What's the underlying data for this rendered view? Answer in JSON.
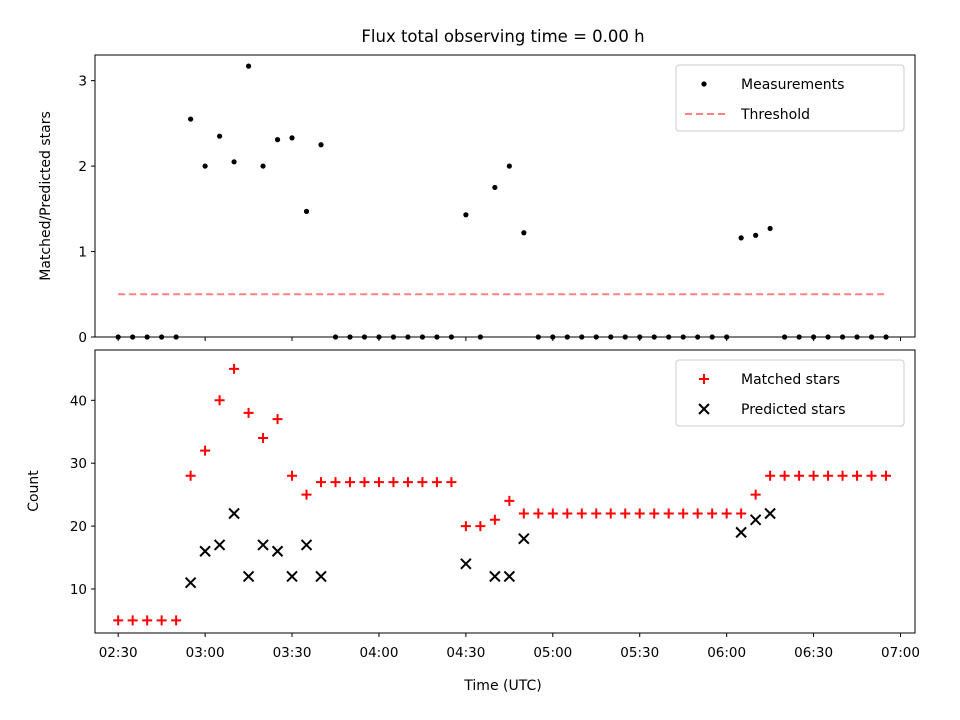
{
  "chart_data": [
    {
      "type": "scatter",
      "title": "Flux total observing time = 0.00 h",
      "xlabel": "",
      "ylabel": "Matched/Predicted stars",
      "xlim": [
        "02:22",
        "07:05"
      ],
      "ylim": [
        0,
        3.3
      ],
      "yticks": [
        0,
        1,
        2,
        3
      ],
      "legend_position": "top-right",
      "series": [
        {
          "name": "Measurements",
          "marker": "dot",
          "color": "#000000",
          "points": [
            [
              "02:30",
              0
            ],
            [
              "02:35",
              0
            ],
            [
              "02:40",
              0
            ],
            [
              "02:45",
              0
            ],
            [
              "02:50",
              0
            ],
            [
              "02:55",
              2.55
            ],
            [
              "03:00",
              2.0
            ],
            [
              "03:05",
              2.35
            ],
            [
              "03:10",
              2.05
            ],
            [
              "03:15",
              3.17
            ],
            [
              "03:20",
              2.0
            ],
            [
              "03:25",
              2.31
            ],
            [
              "03:30",
              2.33
            ],
            [
              "03:35",
              1.47
            ],
            [
              "03:40",
              2.25
            ],
            [
              "03:45",
              0
            ],
            [
              "03:50",
              0
            ],
            [
              "03:55",
              0
            ],
            [
              "04:00",
              0
            ],
            [
              "04:05",
              0
            ],
            [
              "04:10",
              0
            ],
            [
              "04:15",
              0
            ],
            [
              "04:20",
              0
            ],
            [
              "04:25",
              0
            ],
            [
              "04:30",
              1.43
            ],
            [
              "04:35",
              0
            ],
            [
              "04:40",
              1.75
            ],
            [
              "04:45",
              2.0
            ],
            [
              "04:50",
              1.22
            ],
            [
              "04:55",
              0
            ],
            [
              "05:00",
              0
            ],
            [
              "05:05",
              0
            ],
            [
              "05:10",
              0
            ],
            [
              "05:15",
              0
            ],
            [
              "05:20",
              0
            ],
            [
              "05:25",
              0
            ],
            [
              "05:30",
              0
            ],
            [
              "05:35",
              0
            ],
            [
              "05:40",
              0
            ],
            [
              "05:45",
              0
            ],
            [
              "05:50",
              0
            ],
            [
              "05:55",
              0
            ],
            [
              "06:00",
              0
            ],
            [
              "06:05",
              1.16
            ],
            [
              "06:10",
              1.19
            ],
            [
              "06:15",
              1.27
            ],
            [
              "06:20",
              0
            ],
            [
              "06:25",
              0
            ],
            [
              "06:30",
              0
            ],
            [
              "06:35",
              0
            ],
            [
              "06:40",
              0
            ],
            [
              "06:45",
              0
            ],
            [
              "06:50",
              0
            ],
            [
              "06:55",
              0
            ]
          ]
        },
        {
          "name": "Threshold",
          "marker": "dashed-line",
          "color": "#ff8080",
          "points": [
            [
              "02:30",
              0.5
            ],
            [
              "06:55",
              0.5
            ]
          ]
        }
      ]
    },
    {
      "type": "scatter",
      "title": "",
      "xlabel": "Time (UTC)",
      "ylabel": "Count",
      "xlim": [
        "02:22",
        "07:05"
      ],
      "ylim": [
        3,
        48
      ],
      "yticks": [
        10,
        20,
        30,
        40
      ],
      "xticks": [
        "02:30",
        "03:00",
        "03:30",
        "04:00",
        "04:30",
        "05:00",
        "05:30",
        "06:00",
        "06:30",
        "07:00"
      ],
      "legend_position": "top-right",
      "series": [
        {
          "name": "Matched stars",
          "marker": "plus",
          "color": "#ff0000",
          "points": [
            [
              "02:30",
              5
            ],
            [
              "02:35",
              5
            ],
            [
              "02:40",
              5
            ],
            [
              "02:45",
              5
            ],
            [
              "02:50",
              5
            ],
            [
              "02:55",
              28
            ],
            [
              "03:00",
              32
            ],
            [
              "03:05",
              40
            ],
            [
              "03:10",
              45
            ],
            [
              "03:15",
              38
            ],
            [
              "03:20",
              34
            ],
            [
              "03:25",
              37
            ],
            [
              "03:30",
              28
            ],
            [
              "03:35",
              25
            ],
            [
              "03:40",
              27
            ],
            [
              "03:45",
              27
            ],
            [
              "03:50",
              27
            ],
            [
              "03:55",
              27
            ],
            [
              "04:00",
              27
            ],
            [
              "04:05",
              27
            ],
            [
              "04:10",
              27
            ],
            [
              "04:15",
              27
            ],
            [
              "04:20",
              27
            ],
            [
              "04:25",
              27
            ],
            [
              "04:30",
              20
            ],
            [
              "04:35",
              20
            ],
            [
              "04:40",
              21
            ],
            [
              "04:45",
              24
            ],
            [
              "04:50",
              22
            ],
            [
              "04:55",
              22
            ],
            [
              "05:00",
              22
            ],
            [
              "05:05",
              22
            ],
            [
              "05:10",
              22
            ],
            [
              "05:15",
              22
            ],
            [
              "05:20",
              22
            ],
            [
              "05:25",
              22
            ],
            [
              "05:30",
              22
            ],
            [
              "05:35",
              22
            ],
            [
              "05:40",
              22
            ],
            [
              "05:45",
              22
            ],
            [
              "05:50",
              22
            ],
            [
              "05:55",
              22
            ],
            [
              "06:00",
              22
            ],
            [
              "06:05",
              22
            ],
            [
              "06:10",
              25
            ],
            [
              "06:15",
              28
            ],
            [
              "06:20",
              28
            ],
            [
              "06:25",
              28
            ],
            [
              "06:30",
              28
            ],
            [
              "06:35",
              28
            ],
            [
              "06:40",
              28
            ],
            [
              "06:45",
              28
            ],
            [
              "06:50",
              28
            ],
            [
              "06:55",
              28
            ]
          ]
        },
        {
          "name": "Predicted stars",
          "marker": "x",
          "color": "#000000",
          "points": [
            [
              "02:55",
              11
            ],
            [
              "03:00",
              16
            ],
            [
              "03:05",
              17
            ],
            [
              "03:10",
              22
            ],
            [
              "03:15",
              12
            ],
            [
              "03:20",
              17
            ],
            [
              "03:25",
              16
            ],
            [
              "03:30",
              12
            ],
            [
              "03:35",
              17
            ],
            [
              "03:40",
              12
            ],
            [
              "04:30",
              14
            ],
            [
              "04:40",
              12
            ],
            [
              "04:45",
              12
            ],
            [
              "04:50",
              18
            ],
            [
              "06:05",
              19
            ],
            [
              "06:10",
              21
            ],
            [
              "06:15",
              22
            ]
          ]
        }
      ]
    }
  ]
}
